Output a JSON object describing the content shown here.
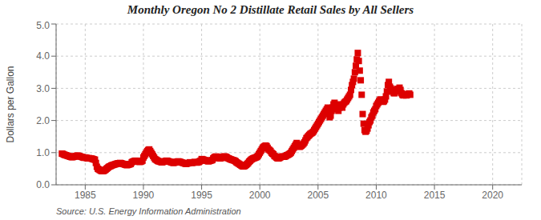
{
  "chart_data": {
    "type": "scatter",
    "title": "Monthly Oregon No 2 Distillate Retail Sales by All Sellers",
    "ylabel": "Dollars per Gallon",
    "annotations": [
      "Source: U.S. Energy Information Administration"
    ],
    "color": "#dd0000",
    "marker": "square",
    "grid": true,
    "xlim": [
      1982.5,
      2022.5
    ],
    "xticks": [
      1985,
      1990,
      1995,
      2000,
      2005,
      2010,
      2015,
      2020
    ],
    "ylim": [
      0.0,
      5.0
    ],
    "yticks": [
      {
        "value": 0.0,
        "label": "0.0"
      },
      {
        "value": 1.0,
        "label": "1.0"
      },
      {
        "value": 2.0,
        "label": "2.0"
      },
      {
        "value": 3.0,
        "label": "3.0"
      },
      {
        "value": 4.0,
        "label": "4.0"
      },
      {
        "value": 5.0,
        "label": "5.0"
      }
    ],
    "x": [
      1983.0,
      1983.083,
      1983.167,
      1983.25,
      1983.333,
      1983.417,
      1983.5,
      1983.583,
      1983.667,
      1983.75,
      1983.833,
      1983.917,
      1984.0,
      1984.083,
      1984.167,
      1984.25,
      1984.333,
      1984.417,
      1984.5,
      1984.583,
      1984.667,
      1984.75,
      1984.833,
      1984.917,
      1985.0,
      1985.083,
      1985.167,
      1985.25,
      1985.333,
      1985.417,
      1985.5,
      1985.583,
      1985.667,
      1985.75,
      1985.833,
      1985.917,
      1986.0,
      1986.083,
      1986.167,
      1986.25,
      1986.333,
      1986.417,
      1986.5,
      1986.583,
      1986.667,
      1986.75,
      1986.833,
      1986.917,
      1987.0,
      1987.083,
      1987.167,
      1987.25,
      1987.333,
      1987.417,
      1987.5,
      1987.583,
      1987.667,
      1987.75,
      1987.833,
      1987.917,
      1988.0,
      1988.083,
      1988.167,
      1988.25,
      1988.333,
      1988.417,
      1988.5,
      1988.583,
      1988.667,
      1988.75,
      1988.833,
      1988.917,
      1989.0,
      1989.083,
      1989.167,
      1989.25,
      1989.333,
      1989.417,
      1989.5,
      1989.583,
      1989.667,
      1989.75,
      1989.833,
      1989.917,
      1990.0,
      1990.083,
      1990.167,
      1990.25,
      1990.333,
      1990.417,
      1990.5,
      1990.583,
      1990.667,
      1990.75,
      1990.833,
      1990.917,
      1991.0,
      1991.083,
      1991.167,
      1991.25,
      1991.333,
      1991.417,
      1991.5,
      1991.583,
      1991.667,
      1991.75,
      1991.833,
      1991.917,
      1992.0,
      1992.083,
      1992.167,
      1992.25,
      1992.333,
      1992.417,
      1992.5,
      1992.583,
      1992.667,
      1992.75,
      1992.833,
      1992.917,
      1993.0,
      1993.083,
      1993.167,
      1993.25,
      1993.333,
      1993.417,
      1993.5,
      1993.583,
      1993.667,
      1993.75,
      1993.833,
      1993.917,
      1994.0,
      1994.083,
      1994.167,
      1994.25,
      1994.333,
      1994.417,
      1994.5,
      1994.583,
      1994.667,
      1994.75,
      1994.833,
      1994.917,
      1995.0,
      1995.083,
      1995.167,
      1995.25,
      1995.333,
      1995.417,
      1995.5,
      1995.583,
      1995.667,
      1995.75,
      1995.833,
      1995.917,
      1996.0,
      1996.083,
      1996.167,
      1996.25,
      1996.333,
      1996.417,
      1996.5,
      1996.583,
      1996.667,
      1996.75,
      1996.833,
      1996.917,
      1997.0,
      1997.083,
      1997.167,
      1997.25,
      1997.333,
      1997.417,
      1997.5,
      1997.583,
      1997.667,
      1997.75,
      1997.833,
      1997.917,
      1998.0,
      1998.083,
      1998.167,
      1998.25,
      1998.333,
      1998.417,
      1998.5,
      1998.583,
      1998.667,
      1998.75,
      1998.833,
      1998.917,
      1999.0,
      1999.083,
      1999.167,
      1999.25,
      1999.333,
      1999.417,
      1999.5,
      1999.583,
      1999.667,
      1999.75,
      1999.833,
      1999.917,
      2000.0,
      2000.083,
      2000.167,
      2000.25,
      2000.333,
      2000.417,
      2000.5,
      2000.583,
      2000.667,
      2000.75,
      2000.833,
      2000.917,
      2001.0,
      2001.083,
      2001.167,
      2001.25,
      2001.333,
      2001.417,
      2001.5,
      2001.583,
      2001.667,
      2001.75,
      2001.833,
      2001.917,
      2002.0,
      2002.083,
      2002.167,
      2002.25,
      2002.333,
      2002.417,
      2002.5,
      2002.583,
      2002.667,
      2002.75,
      2002.833,
      2002.917,
      2003.0,
      2003.083,
      2003.167,
      2003.25,
      2003.333,
      2003.417,
      2003.5,
      2003.583,
      2003.667,
      2003.75,
      2003.833,
      2003.917,
      2004.0,
      2004.083,
      2004.167,
      2004.25,
      2004.333,
      2004.417,
      2004.5,
      2004.583,
      2004.667,
      2004.75,
      2004.833,
      2004.917,
      2005.0,
      2005.083,
      2005.167,
      2005.25,
      2005.333,
      2005.417,
      2005.5,
      2005.583,
      2005.667,
      2005.75,
      2005.833,
      2005.917,
      2006.0,
      2006.083,
      2006.167,
      2006.25,
      2006.333,
      2006.417,
      2006.5,
      2006.583,
      2006.667,
      2006.75,
      2006.833,
      2006.917,
      2007.0,
      2007.083,
      2007.167,
      2007.25,
      2007.333,
      2007.417,
      2007.5,
      2007.583,
      2007.667,
      2007.75,
      2007.833,
      2007.917,
      2008.0,
      2008.083,
      2008.167,
      2008.25,
      2008.333,
      2008.417,
      2008.5,
      2008.583,
      2008.667,
      2008.75,
      2008.833,
      2008.917,
      2009.0,
      2009.083,
      2009.167,
      2009.25,
      2009.333,
      2009.417,
      2009.5,
      2009.583,
      2009.667,
      2009.75,
      2009.833,
      2009.917,
      2010.0,
      2010.083,
      2010.167,
      2010.25,
      2010.333,
      2010.417,
      2010.5,
      2010.583,
      2010.667,
      2010.75,
      2010.833,
      2010.917,
      2011.0,
      2011.083,
      2011.167,
      2011.25,
      2011.333,
      2011.417,
      2011.5,
      2011.583,
      2011.667,
      2011.75,
      2011.833,
      2011.917,
      2012.0,
      2012.083,
      2012.167,
      2012.25,
      2012.333,
      2012.417,
      2012.5,
      2012.583,
      2012.667,
      2012.75,
      2012.833,
      2012.917
    ],
    "values": [
      0.97,
      0.96,
      0.94,
      0.93,
      0.92,
      0.91,
      0.9,
      0.89,
      0.88,
      0.87,
      0.86,
      0.86,
      0.87,
      0.88,
      0.89,
      0.9,
      0.91,
      0.9,
      0.89,
      0.88,
      0.87,
      0.86,
      0.85,
      0.84,
      0.85,
      0.84,
      0.83,
      0.82,
      0.83,
      0.82,
      0.82,
      0.81,
      0.8,
      0.79,
      0.78,
      0.68,
      0.56,
      0.5,
      0.48,
      0.46,
      0.44,
      0.43,
      0.43,
      0.43,
      0.45,
      0.47,
      0.5,
      0.52,
      0.55,
      0.57,
      0.58,
      0.6,
      0.61,
      0.62,
      0.63,
      0.64,
      0.65,
      0.66,
      0.67,
      0.67,
      0.68,
      0.67,
      0.66,
      0.65,
      0.64,
      0.63,
      0.62,
      0.61,
      0.62,
      0.63,
      0.64,
      0.65,
      0.7,
      0.72,
      0.73,
      0.74,
      0.75,
      0.74,
      0.73,
      0.72,
      0.71,
      0.72,
      0.73,
      0.75,
      0.85,
      0.9,
      0.95,
      1.0,
      1.05,
      1.08,
      1.1,
      1.05,
      1.0,
      0.95,
      0.9,
      0.85,
      0.8,
      0.78,
      0.76,
      0.74,
      0.73,
      0.72,
      0.71,
      0.7,
      0.71,
      0.72,
      0.73,
      0.74,
      0.75,
      0.74,
      0.73,
      0.72,
      0.71,
      0.7,
      0.69,
      0.68,
      0.69,
      0.7,
      0.71,
      0.72,
      0.73,
      0.72,
      0.71,
      0.7,
      0.69,
      0.68,
      0.67,
      0.66,
      0.65,
      0.66,
      0.67,
      0.68,
      0.7,
      0.69,
      0.68,
      0.69,
      0.7,
      0.71,
      0.7,
      0.69,
      0.7,
      0.71,
      0.73,
      0.75,
      0.8,
      0.79,
      0.78,
      0.77,
      0.76,
      0.75,
      0.74,
      0.73,
      0.74,
      0.75,
      0.76,
      0.77,
      0.82,
      0.85,
      0.87,
      0.88,
      0.87,
      0.85,
      0.83,
      0.82,
      0.83,
      0.85,
      0.87,
      0.88,
      0.88,
      0.87,
      0.85,
      0.83,
      0.82,
      0.8,
      0.79,
      0.78,
      0.77,
      0.76,
      0.75,
      0.73,
      0.7,
      0.68,
      0.66,
      0.64,
      0.62,
      0.6,
      0.58,
      0.57,
      0.58,
      0.6,
      0.62,
      0.65,
      0.68,
      0.72,
      0.75,
      0.78,
      0.8,
      0.82,
      0.83,
      0.84,
      0.85,
      0.87,
      0.9,
      0.95,
      1.0,
      1.05,
      1.1,
      1.15,
      1.18,
      1.2,
      1.22,
      1.2,
      1.15,
      1.1,
      1.08,
      1.05,
      1.0,
      0.97,
      0.95,
      0.9,
      0.88,
      0.85,
      0.83,
      0.82,
      0.83,
      0.85,
      0.87,
      0.88,
      0.88,
      0.87,
      0.88,
      0.9,
      0.92,
      0.93,
      0.95,
      0.97,
      1.0,
      1.05,
      1.1,
      1.15,
      1.2,
      1.25,
      1.3,
      1.25,
      1.2,
      1.18,
      1.2,
      1.22,
      1.25,
      1.28,
      1.32,
      1.38,
      1.45,
      1.48,
      1.52,
      1.55,
      1.58,
      1.6,
      1.62,
      1.65,
      1.7,
      1.75,
      1.8,
      1.85,
      1.9,
      1.95,
      2.0,
      2.05,
      2.1,
      2.15,
      2.2,
      2.25,
      2.3,
      2.35,
      2.4,
      2.38,
      2.1,
      2.15,
      2.3,
      2.4,
      2.5,
      2.55,
      2.45,
      2.4,
      2.35,
      2.3,
      2.4,
      2.5,
      2.45,
      2.4,
      2.5,
      2.55,
      2.58,
      2.6,
      2.65,
      2.7,
      2.75,
      2.8,
      2.95,
      3.1,
      3.2,
      3.3,
      3.5,
      3.7,
      3.9,
      4.1,
      3.85,
      3.55,
      3.25,
      2.8,
      2.2,
      1.9,
      1.7,
      1.65,
      1.68,
      1.75,
      1.85,
      1.95,
      2.0,
      2.1,
      2.15,
      2.25,
      2.3,
      2.35,
      2.45,
      2.5,
      2.55,
      2.6,
      2.65,
      2.65,
      2.6,
      2.58,
      2.6,
      2.65,
      2.75,
      2.9,
      3.1,
      3.2,
      3.05,
      3.0,
      2.95,
      2.9,
      2.85,
      2.85,
      2.9,
      2.95,
      2.98,
      2.98,
      3.02,
      2.95,
      2.85,
      2.8,
      2.78,
      2.82,
      2.8,
      2.78,
      2.8,
      2.82,
      2.84,
      2.8
    ]
  }
}
